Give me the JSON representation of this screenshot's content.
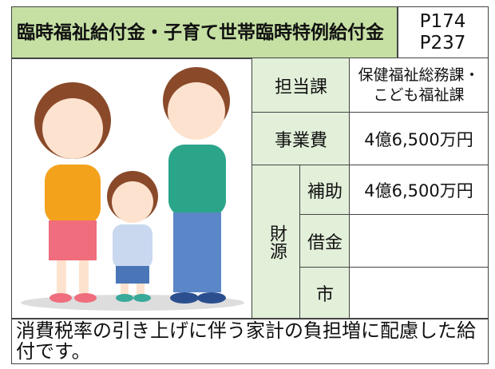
{
  "header": {
    "title": "臨時福祉給付金・子育て世帯臨時特例給付金",
    "pages": [
      "P174",
      "P237"
    ]
  },
  "table": {
    "rows": [
      {
        "label": "担当課",
        "value": [
          "保健福祉総務課・",
          "こども福祉課"
        ]
      },
      {
        "label": "事業費",
        "value": "4億6,500万円"
      }
    ],
    "funding": {
      "label": "財源",
      "rows": [
        {
          "label": "補助",
          "value": "4億6,500万円"
        },
        {
          "label": "借金"
        },
        {
          "label": "市"
        }
      ]
    }
  },
  "footer": "消費税率の引き上げに伴う家計の負担増に配慮した給付です。"
}
